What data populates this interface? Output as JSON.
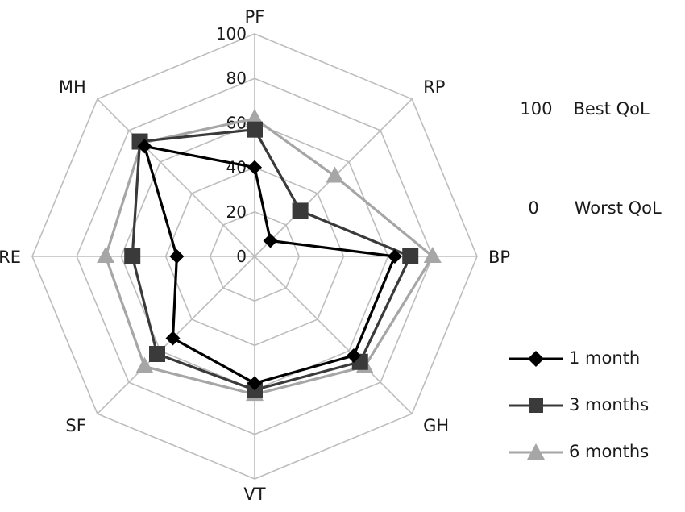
{
  "chart_data": {
    "type": "radar",
    "axes": [
      "PF",
      "RP",
      "BP",
      "GH",
      "VT",
      "SF",
      "RE",
      "MH"
    ],
    "rlim": [
      0,
      100
    ],
    "ticks": [
      0,
      20,
      40,
      60,
      80,
      100
    ],
    "tick_labels": [
      "0",
      "20",
      "40",
      "60",
      "80",
      "100"
    ],
    "grid": true,
    "legend_position": "bottom-right",
    "series": [
      {
        "name": "1 month",
        "marker": "diamond",
        "color": "#000000",
        "values": [
          40,
          10,
          63,
          63,
          57,
          52,
          35,
          70
        ]
      },
      {
        "name": "3 months",
        "marker": "square",
        "color": "#3a3a3a",
        "values": [
          57,
          29,
          70,
          67,
          60,
          62,
          55,
          73
        ]
      },
      {
        "name": "6 months",
        "marker": "triangle",
        "color": "#a6a6a6",
        "values": [
          62,
          51,
          80,
          70,
          62,
          70,
          67,
          72
        ]
      }
    ]
  },
  "notes": {
    "best_value": "100",
    "best_label": "Best QoL",
    "worst_value": "0",
    "worst_label": "Worst QoL"
  }
}
